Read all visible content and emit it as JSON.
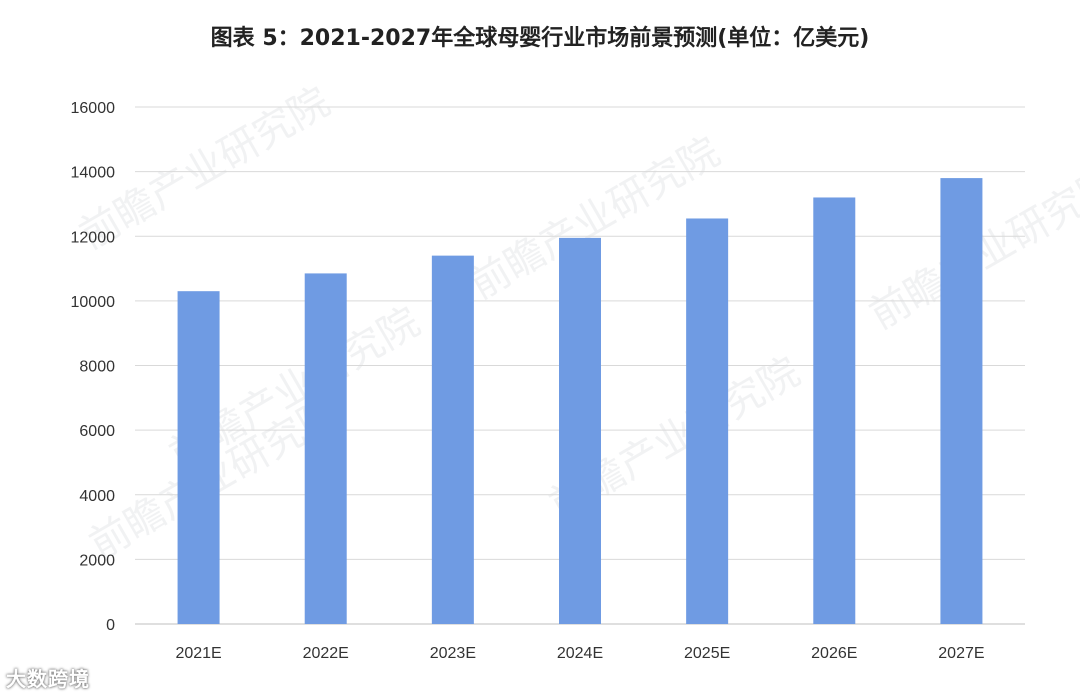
{
  "chart_data": {
    "type": "bar",
    "title": "图表 5：2021-2027年全球母婴行业市场前景预测(单位：亿美元)",
    "xlabel": "",
    "ylabel": "",
    "categories": [
      "2021E",
      "2022E",
      "2023E",
      "2024E",
      "2025E",
      "2026E",
      "2027E"
    ],
    "values": [
      10300,
      10850,
      11400,
      11950,
      12550,
      13200,
      13800
    ],
    "ylim": [
      0,
      16000
    ],
    "yticks": [
      0,
      2000,
      4000,
      6000,
      8000,
      10000,
      12000,
      14000,
      16000
    ],
    "grid": true,
    "legend": "none",
    "bar_color": "#6f9be3"
  },
  "watermark": "前瞻产业研究院",
  "corner_logo": "大数跨境"
}
